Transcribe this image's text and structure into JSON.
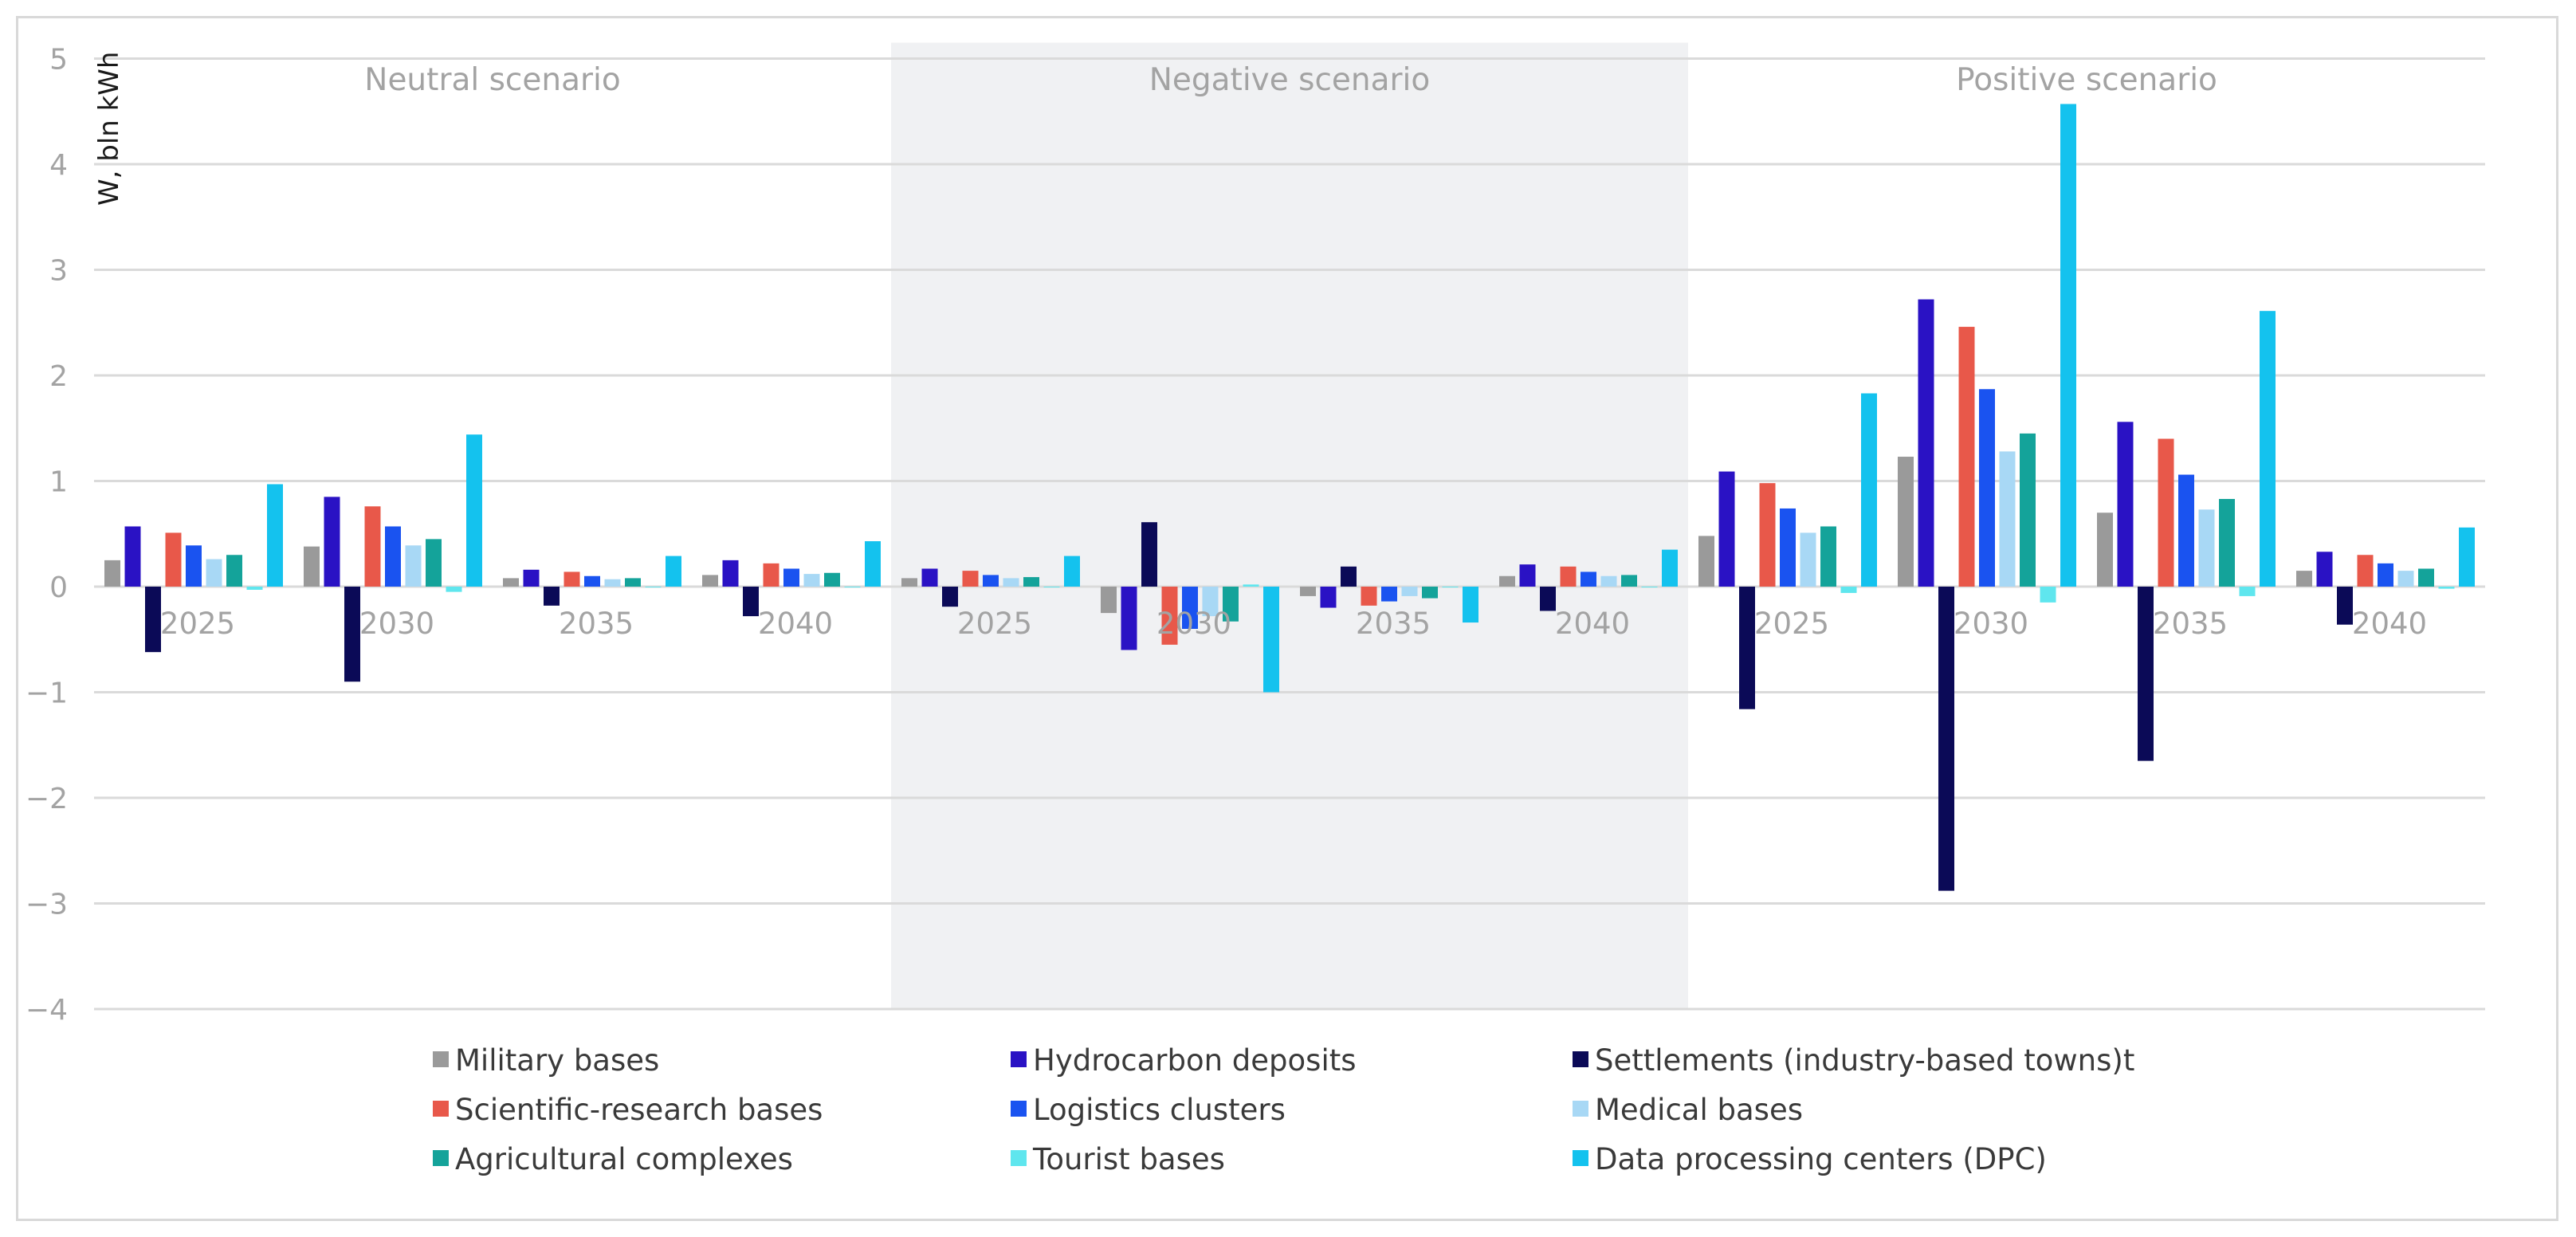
{
  "chart_data": {
    "type": "bar",
    "ylabel": "W, bln kWh",
    "ylim": [
      -4,
      5
    ],
    "yticks": [
      "5",
      "4",
      "3",
      "2",
      "1",
      "0",
      "−1",
      "−2",
      "−3",
      "−4"
    ],
    "ytick_values": [
      5,
      4,
      3,
      2,
      1,
      0,
      -1,
      -2,
      -3,
      -4
    ],
    "grid": true,
    "legend_position": "bottom",
    "scenarios": [
      {
        "label": "Neutral scenario",
        "shaded": false
      },
      {
        "label": "Negative scenario",
        "shaded": true
      },
      {
        "label": "Positive scenario",
        "shaded": false
      }
    ],
    "categories": [
      "2025",
      "2030",
      "2035",
      "2040",
      "2025",
      "2030",
      "2035",
      "2040",
      "2025",
      "2030",
      "2035",
      "2040"
    ],
    "series": [
      {
        "name": "Military bases",
        "color": "#9a9a9a",
        "values": [
          0.25,
          0.38,
          0.08,
          0.11,
          0.08,
          -0.25,
          -0.09,
          0.1,
          0.48,
          1.23,
          0.7,
          0.15
        ]
      },
      {
        "name": "Hydrocarbon deposits",
        "color": "#2a12c4",
        "values": [
          0.57,
          0.85,
          0.16,
          0.25,
          0.17,
          -0.6,
          -0.2,
          0.21,
          1.09,
          2.72,
          1.56,
          0.33
        ]
      },
      {
        "name": "Settlements (industry-based towns)t",
        "color": "#0b0a57",
        "values": [
          -0.62,
          -0.9,
          -0.18,
          -0.28,
          -0.19,
          0.61,
          0.19,
          -0.23,
          -1.16,
          -2.88,
          -1.65,
          -0.36
        ]
      },
      {
        "name": "Scientific-research bases",
        "color": "#e8584a",
        "values": [
          0.51,
          0.76,
          0.14,
          0.22,
          0.15,
          -0.55,
          -0.18,
          0.19,
          0.98,
          2.46,
          1.4,
          0.3
        ]
      },
      {
        "name": "Logistics clusters",
        "color": "#1a53f0",
        "values": [
          0.39,
          0.57,
          0.1,
          0.17,
          0.11,
          -0.4,
          -0.14,
          0.14,
          0.74,
          1.87,
          1.06,
          0.22
        ]
      },
      {
        "name": "Medical bases",
        "color": "#a8d8f5",
        "values": [
          0.26,
          0.39,
          0.07,
          0.12,
          0.08,
          -0.28,
          -0.09,
          0.1,
          0.51,
          1.28,
          0.73,
          0.15
        ]
      },
      {
        "name": "Agricultural complexes",
        "color": "#14a39a",
        "values": [
          0.3,
          0.45,
          0.08,
          0.13,
          0.09,
          -0.33,
          -0.11,
          0.11,
          0.57,
          1.45,
          0.83,
          0.17
        ]
      },
      {
        "name": "Tourist bases",
        "color": "#5fe6ee",
        "values": [
          -0.03,
          -0.05,
          0.0,
          0.0,
          0.0,
          0.02,
          0.0,
          0.0,
          -0.06,
          -0.15,
          -0.09,
          -0.02
        ]
      },
      {
        "name": "Data processing centers (DPC)",
        "color": "#14c2ee",
        "values": [
          0.97,
          1.44,
          0.29,
          0.43,
          0.29,
          -1.0,
          -0.34,
          0.35,
          1.83,
          4.57,
          2.61,
          0.56
        ]
      }
    ]
  }
}
